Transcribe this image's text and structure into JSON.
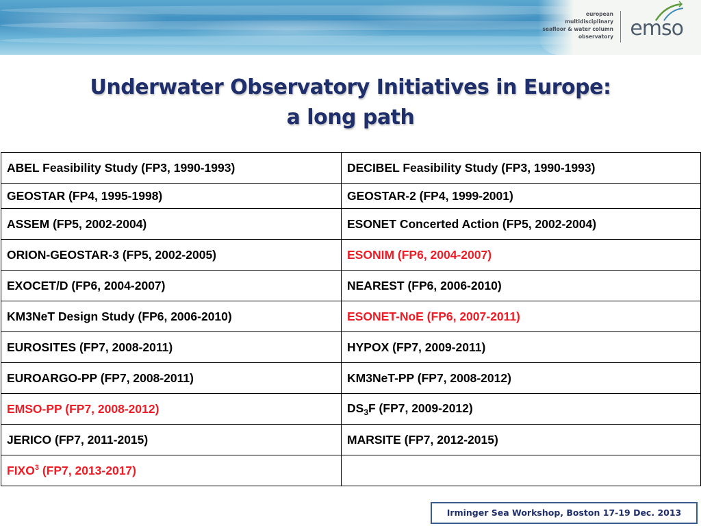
{
  "logo": {
    "lines": [
      "european",
      "multidisciplinary",
      "seafloor & water column",
      "observatory"
    ],
    "word": "emso"
  },
  "title": {
    "line1": "Underwater Observatory Initiatives in Europe:",
    "line2": "a long path"
  },
  "table": {
    "rows": [
      [
        {
          "text": "ABEL Feasibility Study (FP3, 1990-1993)"
        },
        {
          "text": "DECIBEL Feasibility Study (FP3, 1990-1993)"
        }
      ],
      [
        {
          "text": "GEOSTAR  (FP4, 1995-1998)"
        },
        {
          "text": "GEOSTAR-2 (FP4, 1999-2001)"
        }
      ],
      [
        {
          "text": "ASSEM (FP5, 2002-2004)"
        },
        {
          "text": "ESONET Concerted Action (FP5, 2002-2004)"
        }
      ],
      [
        {
          "text": "ORION-GEOSTAR-3 (FP5, 2002-2005)"
        },
        {
          "text": "ESONIM (FP6, 2004-2007)",
          "highlight": true
        }
      ],
      [
        {
          "text": "EXOCET/D (FP6, 2004-2007)"
        },
        {
          "text": "NEAREST (FP6, 2006-2010)"
        }
      ],
      [
        {
          "text": "KM3NeT Design Study (FP6, 2006-2010)"
        },
        {
          "text": "ESONET-NoE (FP6, 2007-2011)",
          "highlight": true
        }
      ],
      [
        {
          "text": "EUROSITES (FP7, 2008-2011)"
        },
        {
          "text": "HYPOX (FP7, 2009-2011)"
        }
      ],
      [
        {
          "text": "EUROARGO-PP (FP7, 2008-2011)"
        },
        {
          "text": "KM3NeT-PP (FP7, 2008-2012)"
        }
      ],
      [
        {
          "text": "EMSO-PP (FP7, 2008-2012)",
          "highlight": true
        },
        {
          "pre": "DS",
          "sub": "3",
          "post": "F (FP7, 2009-2012)"
        }
      ],
      [
        {
          "text": "JERICO (FP7, 2011-2015)"
        },
        {
          "text": "MARSITE (FP7, 2012-2015)"
        }
      ],
      [
        {
          "pre": "FIXO",
          "sup": "3",
          "post": " (FP7, 2013-2017)",
          "highlight": true
        },
        {
          "text": ""
        }
      ]
    ],
    "highlight_color": "#ee1c25"
  },
  "footer": {
    "text": "Irminger Sea Workshop, Boston 17-19 Dec. 2013"
  },
  "colors": {
    "title": "#1f2f6b",
    "footer_border": "#3b5c8e",
    "banner": "#3f8fc0"
  }
}
